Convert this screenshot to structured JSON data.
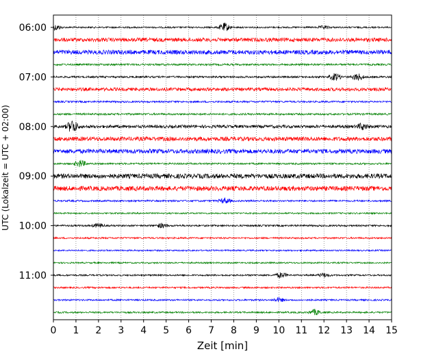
{
  "chart_data": {
    "type": "line",
    "title": "",
    "xlabel": "Zeit  [min]",
    "ylabel": "UTC (Lokalzeit = UTC + 02:00)",
    "xlim": [
      0,
      15
    ],
    "x_ticks": [
      "0",
      "1",
      "2",
      "3",
      "4",
      "5",
      "6",
      "7",
      "8",
      "9",
      "10",
      "11",
      "12",
      "13",
      "14",
      "15"
    ],
    "y_ticks": [
      "06:00",
      "07:00",
      "08:00",
      "09:00",
      "10:00",
      "11:00"
    ],
    "grid": true,
    "grid_axis": "x",
    "colors": [
      "#000000",
      "#ff0000",
      "#0000ff",
      "#008000"
    ],
    "series": [
      {
        "start": "06:00",
        "color": "#000000",
        "base_amp": 1.2,
        "events": [
          [
            0.1,
            4
          ],
          [
            7.6,
            6
          ],
          [
            12.0,
            2
          ]
        ]
      },
      {
        "start": "06:15",
        "color": "#ff0000",
        "base_amp": 2.8,
        "events": []
      },
      {
        "start": "06:30",
        "color": "#0000ff",
        "base_amp": 3.2,
        "events": []
      },
      {
        "start": "06:45",
        "color": "#008000",
        "base_amp": 1.4,
        "events": []
      },
      {
        "start": "07:00",
        "color": "#000000",
        "base_amp": 1.4,
        "events": [
          [
            12.5,
            5
          ],
          [
            13.5,
            5
          ]
        ]
      },
      {
        "start": "07:15",
        "color": "#ff0000",
        "base_amp": 2.4,
        "events": []
      },
      {
        "start": "07:30",
        "color": "#0000ff",
        "base_amp": 1.3,
        "events": []
      },
      {
        "start": "07:45",
        "color": "#008000",
        "base_amp": 1.4,
        "events": []
      },
      {
        "start": "08:00",
        "color": "#000000",
        "base_amp": 2.2,
        "events": [
          [
            0.85,
            9
          ],
          [
            13.7,
            4
          ]
        ]
      },
      {
        "start": "08:15",
        "color": "#ff0000",
        "base_amp": 3.0,
        "events": []
      },
      {
        "start": "08:30",
        "color": "#0000ff",
        "base_amp": 3.2,
        "events": []
      },
      {
        "start": "08:45",
        "color": "#008000",
        "base_amp": 1.3,
        "events": [
          [
            1.2,
            5
          ]
        ]
      },
      {
        "start": "09:00",
        "color": "#000000",
        "base_amp": 3.4,
        "events": []
      },
      {
        "start": "09:15",
        "color": "#ff0000",
        "base_amp": 3.4,
        "events": []
      },
      {
        "start": "09:30",
        "color": "#0000ff",
        "base_amp": 1.3,
        "events": [
          [
            7.6,
            4
          ]
        ]
      },
      {
        "start": "09:45",
        "color": "#008000",
        "base_amp": 1.1,
        "events": []
      },
      {
        "start": "10:00",
        "color": "#000000",
        "base_amp": 1.3,
        "events": [
          [
            2.0,
            3
          ],
          [
            4.8,
            3
          ]
        ]
      },
      {
        "start": "10:15",
        "color": "#ff0000",
        "base_amp": 1.2,
        "events": []
      },
      {
        "start": "10:30",
        "color": "#0000ff",
        "base_amp": 1.1,
        "events": []
      },
      {
        "start": "10:45",
        "color": "#008000",
        "base_amp": 1.1,
        "events": []
      },
      {
        "start": "11:00",
        "color": "#000000",
        "base_amp": 1.2,
        "events": [
          [
            10.1,
            4
          ],
          [
            12.0,
            3
          ]
        ]
      },
      {
        "start": "11:15",
        "color": "#ff0000",
        "base_amp": 1.2,
        "events": []
      },
      {
        "start": "11:30",
        "color": "#0000ff",
        "base_amp": 1.2,
        "events": [
          [
            10.0,
            3
          ]
        ]
      },
      {
        "start": "11:45",
        "color": "#008000",
        "base_amp": 1.2,
        "events": [
          [
            11.6,
            4
          ]
        ]
      }
    ]
  }
}
